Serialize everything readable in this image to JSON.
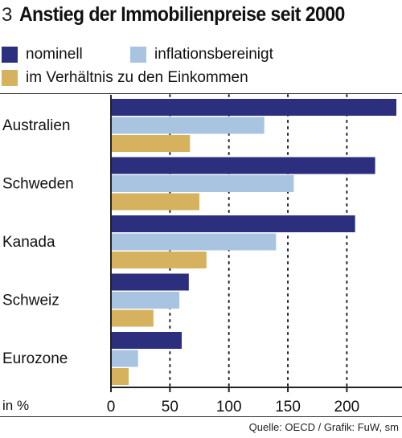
{
  "figure_number": "3",
  "title": "Anstieg der Immobilienpreise seit 2000",
  "unit_label": "in %",
  "source": "Quelle: OECD / Grafik: FuW, sm",
  "colors": {
    "nominal": "#2b2f7e",
    "real": "#a9c4e0",
    "income": "#d6b25e",
    "grid": "#222222",
    "axis": "#222222"
  },
  "chart_data": {
    "type": "bar",
    "orientation": "horizontal",
    "categories": [
      "Australien",
      "Schweden",
      "Kanada",
      "Schweiz",
      "Eurozone"
    ],
    "series": [
      {
        "name": "nominell",
        "values": [
          242,
          224,
          207,
          66,
          60
        ]
      },
      {
        "name": "inflationsbereinigt",
        "values": [
          130,
          155,
          140,
          58,
          23
        ]
      },
      {
        "name": "im Verhältnis zu den Einkommen",
        "values": [
          67,
          75,
          81,
          36,
          15
        ]
      }
    ],
    "xlim": [
      0,
      242
    ],
    "xticks": [
      0,
      50,
      100,
      150,
      200
    ],
    "xtick_labels": [
      "0",
      "50",
      "100",
      "150",
      "200"
    ],
    "grid": "vertical dotted",
    "legend_placement": "top"
  }
}
